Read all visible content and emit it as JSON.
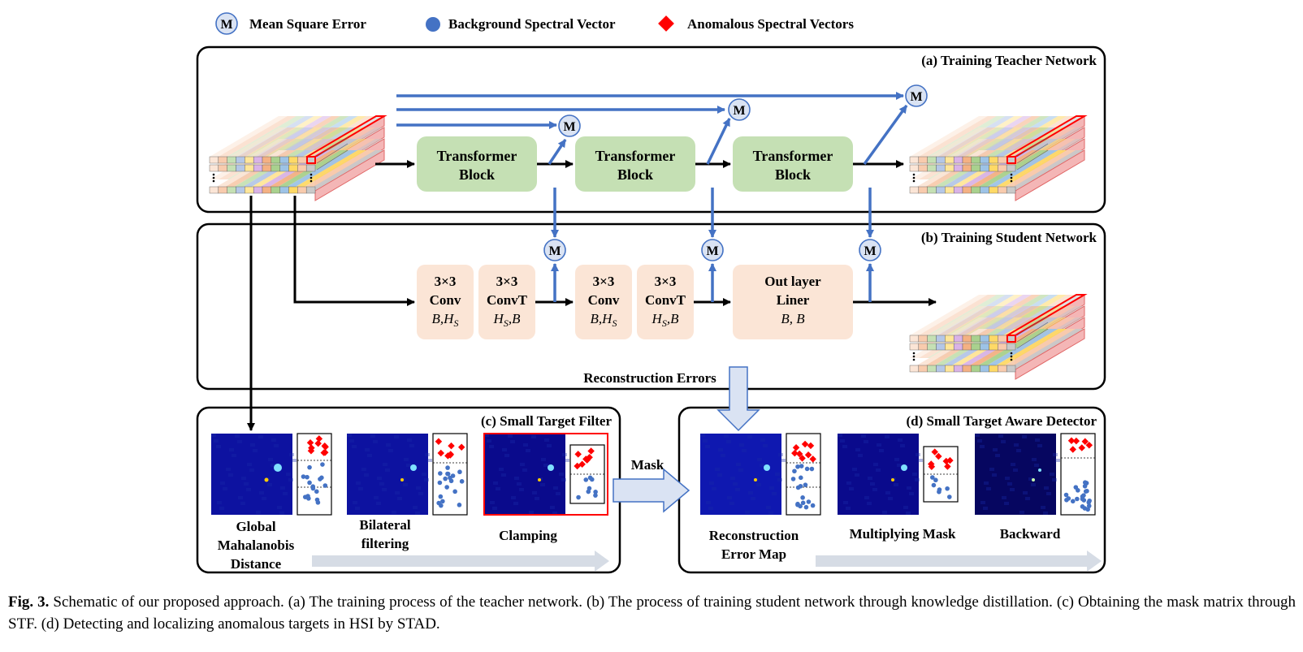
{
  "legend": [
    {
      "symbol": "M",
      "label": "Mean Square Error"
    },
    {
      "label": "Background Spectral Vector",
      "color": "#4472c4"
    },
    {
      "label": "Anomalous Spectral Vectors",
      "color": "#ff0000"
    }
  ],
  "panels": {
    "a": {
      "title": "(a) Training Teacher Network",
      "block_label": [
        "Transformer",
        "Block"
      ]
    },
    "b": {
      "title": "(b) Training Student Network",
      "blocks": [
        {
          "l1": "3×3",
          "l2": "Conv",
          "l3a": "B",
          "l3b": "H",
          "l3sub": "S",
          "order": "B,H"
        },
        {
          "l1": "3×3",
          "l2": "ConvT",
          "l3a": "H",
          "l3sub": "S",
          "l3b": "B",
          "order": "H,B"
        },
        {
          "l1": "3×3",
          "l2": "Conv",
          "l3a": "B",
          "l3b": "H",
          "l3sub": "S",
          "order": "B,H"
        },
        {
          "l1": "3×3",
          "l2": "ConvT",
          "l3a": "H",
          "l3sub": "S",
          "l3b": "B",
          "order": "H,B"
        }
      ],
      "out_layer": {
        "l1": "Out layer",
        "l2": "Liner",
        "l3": "B, B"
      },
      "reconstruction_label": "Reconstruction Errors"
    },
    "c": {
      "title": "(c) Small Target Filter",
      "steps": [
        [
          "Global",
          "Mahalanobis",
          "Distance"
        ],
        [
          "Bilateral",
          "filtering"
        ],
        [
          "Clamping"
        ]
      ]
    },
    "d": {
      "title": "(d) Small Target Aware Detector",
      "steps": [
        [
          "Reconstruction",
          "Error Map"
        ],
        [
          "Multiplying Mask"
        ],
        [
          "Backward"
        ]
      ]
    },
    "mask_label": "Mask"
  },
  "mse_symbol": "M",
  "caption": {
    "label": "Fig. 3.",
    "text": "Schematic of our proposed approach. (a) The training process of the teacher network. (b) The process of training student network through knowledge distillation. (c) Obtaining the mask matrix through STF. (d) Detecting and localizing anomalous targets in HSI by STAD."
  },
  "colors": {
    "mse_fill": "#dae3f3",
    "mse_stroke": "#4472c4",
    "arrow_blue": "#4472c4",
    "transformer_fill": "#c5e0b4",
    "conv_fill": "#fbe5d6",
    "heatmap": "#0a0a8c"
  }
}
